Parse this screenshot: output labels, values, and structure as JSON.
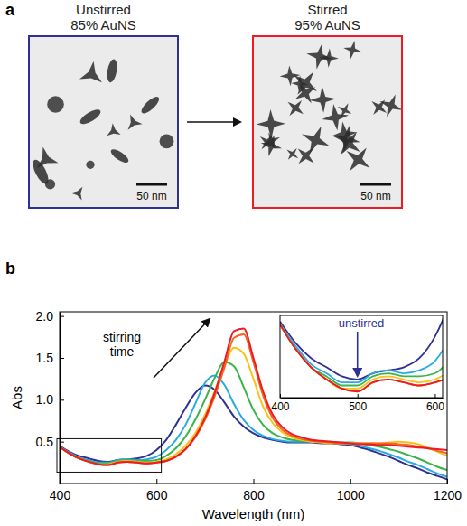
{
  "figure": {
    "panel_label": "a",
    "images": [
      {
        "title": "Unstirred",
        "subtitle": "85% AuNS",
        "scale_bar": "50 nm",
        "color": "#2e3192"
      },
      {
        "title": "Stirred",
        "subtitle": "95% AuNS",
        "scale_bar": "50 nm",
        "color": "#ed1c24"
      }
    ]
  },
  "chart_data": {
    "type": "line",
    "panel_label": "b",
    "x_label": "Wavelength (nm)",
    "y_label": "Abs",
    "x": [
      400,
      420,
      440,
      460,
      480,
      500,
      520,
      540,
      560,
      580,
      600,
      620,
      640,
      660,
      680,
      700,
      720,
      740,
      760,
      780,
      800,
      820,
      840,
      860,
      880,
      900,
      920,
      940,
      960,
      980,
      1000,
      1020,
      1040,
      1060,
      1080,
      1100,
      1120,
      1140,
      1160,
      1180,
      1200
    ],
    "xlim": [
      400,
      1200
    ],
    "xticks": [
      400,
      600,
      800,
      1000,
      1200
    ],
    "ylim": [
      0,
      2.05
    ],
    "yticks": [
      {
        "value": 0.5,
        "label": "0.5"
      },
      {
        "value": 1.0,
        "label": "1.0"
      },
      {
        "value": 1.5,
        "label": "1.5"
      },
      {
        "value": 2.0,
        "label": "2.0"
      }
    ],
    "series": [
      {
        "color": "#2e3192",
        "values": [
          0.45,
          0.38,
          0.33,
          0.3,
          0.27,
          0.26,
          0.28,
          0.29,
          0.3,
          0.33,
          0.4,
          0.52,
          0.7,
          0.9,
          1.08,
          1.17,
          1.12,
          0.97,
          0.8,
          0.68,
          0.6,
          0.55,
          0.52,
          0.5,
          0.49,
          0.49,
          0.49,
          0.48,
          0.48,
          0.47,
          0.46,
          0.43,
          0.4,
          0.36,
          0.32,
          0.27,
          0.22,
          0.18,
          0.13,
          0.09,
          0.05
        ]
      },
      {
        "color": "#29abe2",
        "values": [
          0.44,
          0.37,
          0.31,
          0.28,
          0.25,
          0.25,
          0.28,
          0.29,
          0.28,
          0.29,
          0.32,
          0.4,
          0.52,
          0.7,
          0.95,
          1.2,
          1.29,
          1.18,
          0.95,
          0.76,
          0.64,
          0.57,
          0.53,
          0.51,
          0.5,
          0.5,
          0.5,
          0.49,
          0.49,
          0.48,
          0.47,
          0.45,
          0.42,
          0.39,
          0.35,
          0.31,
          0.26,
          0.22,
          0.17,
          0.12,
          0.08
        ]
      },
      {
        "color": "#39b54a",
        "values": [
          0.44,
          0.36,
          0.3,
          0.27,
          0.24,
          0.24,
          0.27,
          0.28,
          0.27,
          0.27,
          0.28,
          0.33,
          0.42,
          0.56,
          0.76,
          1.0,
          1.26,
          1.45,
          1.4,
          1.15,
          0.88,
          0.7,
          0.6,
          0.55,
          0.52,
          0.51,
          0.5,
          0.5,
          0.5,
          0.49,
          0.49,
          0.48,
          0.46,
          0.44,
          0.41,
          0.38,
          0.34,
          0.3,
          0.25,
          0.2,
          0.16
        ]
      },
      {
        "color": "#f9c21a",
        "values": [
          0.44,
          0.36,
          0.3,
          0.26,
          0.23,
          0.23,
          0.26,
          0.27,
          0.26,
          0.25,
          0.26,
          0.29,
          0.35,
          0.45,
          0.6,
          0.82,
          1.1,
          1.4,
          1.62,
          1.55,
          1.25,
          0.92,
          0.72,
          0.61,
          0.55,
          0.52,
          0.5,
          0.49,
          0.48,
          0.48,
          0.48,
          0.48,
          0.48,
          0.48,
          0.49,
          0.5,
          0.49,
          0.47,
          0.43,
          0.38,
          0.33
        ]
      },
      {
        "color": "#f26522",
        "values": [
          0.44,
          0.36,
          0.3,
          0.26,
          0.23,
          0.22,
          0.25,
          0.26,
          0.25,
          0.24,
          0.25,
          0.27,
          0.32,
          0.41,
          0.55,
          0.76,
          1.04,
          1.38,
          1.74,
          1.78,
          1.45,
          1.05,
          0.78,
          0.64,
          0.57,
          0.53,
          0.51,
          0.5,
          0.49,
          0.48,
          0.48,
          0.48,
          0.48,
          0.48,
          0.48,
          0.47,
          0.46,
          0.44,
          0.42,
          0.39,
          0.36
        ]
      },
      {
        "color": "#ed1c24",
        "values": [
          0.44,
          0.36,
          0.3,
          0.26,
          0.23,
          0.22,
          0.25,
          0.26,
          0.25,
          0.24,
          0.25,
          0.27,
          0.32,
          0.41,
          0.56,
          0.78,
          1.08,
          1.45,
          1.82,
          1.85,
          1.5,
          1.1,
          0.82,
          0.67,
          0.59,
          0.55,
          0.52,
          0.51,
          0.5,
          0.49,
          0.48,
          0.47,
          0.47,
          0.46,
          0.46,
          0.45,
          0.44,
          0.43,
          0.42,
          0.41,
          0.4
        ]
      }
    ],
    "annotations": [
      "stirring time"
    ],
    "inset": {
      "xlim": [
        400,
        610
      ],
      "ylim": [
        0.2,
        0.47
      ],
      "xticks": [
        400,
        500,
        600
      ],
      "annotation": "unstirred"
    }
  }
}
